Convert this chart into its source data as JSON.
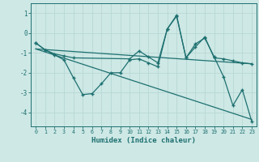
{
  "xlabel": "Humidex (Indice chaleur)",
  "background_color": "#cde8e5",
  "grid_color": "#b8d8d5",
  "line_color": "#1e7070",
  "xlim": [
    -0.5,
    23.5
  ],
  "ylim": [
    -4.7,
    1.5
  ],
  "yticks": [
    1,
    0,
    -1,
    -2,
    -3,
    -4
  ],
  "xticks": [
    0,
    1,
    2,
    3,
    4,
    5,
    6,
    7,
    8,
    9,
    10,
    11,
    12,
    13,
    14,
    15,
    16,
    17,
    18,
    19,
    20,
    21,
    22,
    23
  ],
  "series1_x": [
    0,
    1,
    2,
    3,
    4,
    10,
    11,
    12,
    13,
    14,
    15,
    16,
    17,
    18,
    19,
    20,
    21,
    22,
    23
  ],
  "series1_y": [
    -0.5,
    -0.85,
    -1.05,
    -1.15,
    -1.25,
    -1.3,
    -0.9,
    -1.2,
    -1.5,
    0.2,
    0.85,
    -1.25,
    -0.7,
    -0.2,
    -1.25,
    -1.3,
    -1.4,
    -1.5,
    -1.55
  ],
  "series2_x": [
    0,
    1,
    2,
    3,
    4,
    5,
    6,
    7,
    8,
    9,
    10,
    11,
    12,
    13,
    14,
    15,
    16,
    17,
    18,
    19,
    20,
    21,
    22,
    23
  ],
  "series2_y": [
    -0.5,
    -0.85,
    -1.1,
    -1.35,
    -2.25,
    -3.1,
    -3.05,
    -2.55,
    -2.0,
    -2.0,
    -1.35,
    -1.3,
    -1.5,
    -1.7,
    0.2,
    0.9,
    -1.25,
    -0.55,
    -0.25,
    -1.2,
    -2.2,
    -3.65,
    -2.85,
    -4.45
  ],
  "trend1_x": [
    0,
    23
  ],
  "trend1_y": [
    -0.8,
    -1.55
  ],
  "trend2_x": [
    0,
    23
  ],
  "trend2_y": [
    -0.8,
    -4.35
  ]
}
